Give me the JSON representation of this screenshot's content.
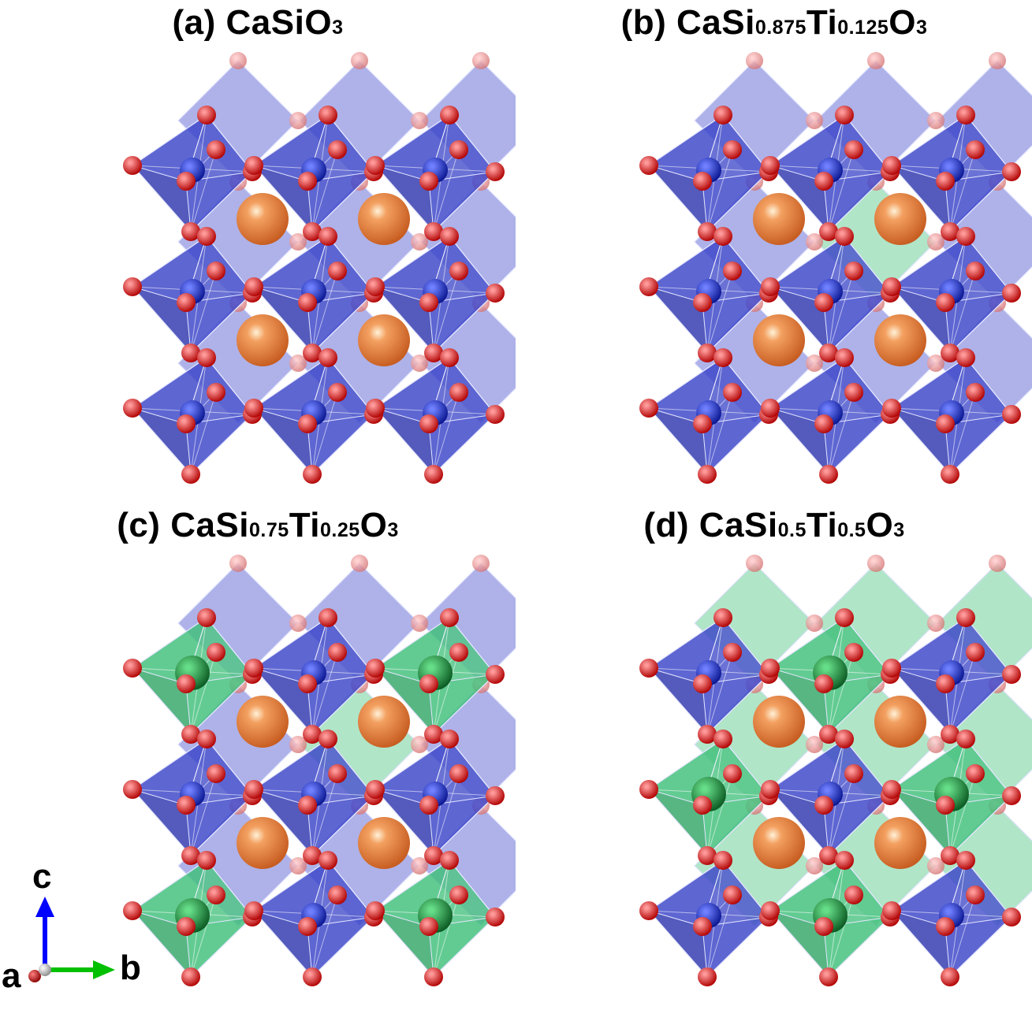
{
  "panels": [
    {
      "letter": "(a)",
      "formula": [
        {
          "t": "CaSiO",
          "sub": false
        },
        {
          "t": "3",
          "sub": true
        }
      ],
      "ti_sites": []
    },
    {
      "letter": "(b)",
      "formula": [
        {
          "t": "CaSi",
          "sub": false
        },
        {
          "t": "0.875",
          "sub": true
        },
        {
          "t": "Ti",
          "sub": false
        },
        {
          "t": "0.125",
          "sub": true
        },
        {
          "t": "O",
          "sub": false
        },
        {
          "t": "3",
          "sub": true
        }
      ],
      "ti_sites": [
        "back-center"
      ]
    },
    {
      "letter": "(c)",
      "formula": [
        {
          "t": "CaSi",
          "sub": false
        },
        {
          "t": "0.75",
          "sub": true
        },
        {
          "t": "Ti",
          "sub": false
        },
        {
          "t": "0.25",
          "sub": true
        },
        {
          "t": "O",
          "sub": false
        },
        {
          "t": "3",
          "sub": true
        }
      ],
      "ti_sites": [
        "front-0-0",
        "front-2-0",
        "front-0-2",
        "front-2-2",
        "back-center"
      ]
    },
    {
      "letter": "(d)",
      "formula": [
        {
          "t": "CaSi",
          "sub": false
        },
        {
          "t": "0.5",
          "sub": true
        },
        {
          "t": "Ti",
          "sub": false
        },
        {
          "t": "0.5",
          "sub": true
        },
        {
          "t": "O",
          "sub": false
        },
        {
          "t": "3",
          "sub": true
        }
      ],
      "ti_sites": [
        "front-1-0",
        "front-0-1",
        "front-2-1",
        "front-1-2",
        "back-all"
      ]
    }
  ],
  "axes": {
    "c": "c",
    "b": "b",
    "a": "a"
  },
  "colors": {
    "si_octahedron": "#3a44c8",
    "ti_octahedron": "#3fbf7a",
    "oxygen": "#e30000",
    "silicon": "#1e2fd0",
    "titanium": "#1f9c3c",
    "calcium": "#e8823c",
    "axis_c": "#0000ff",
    "axis_b": "#00cc00",
    "axis_a": "#cc0000"
  }
}
